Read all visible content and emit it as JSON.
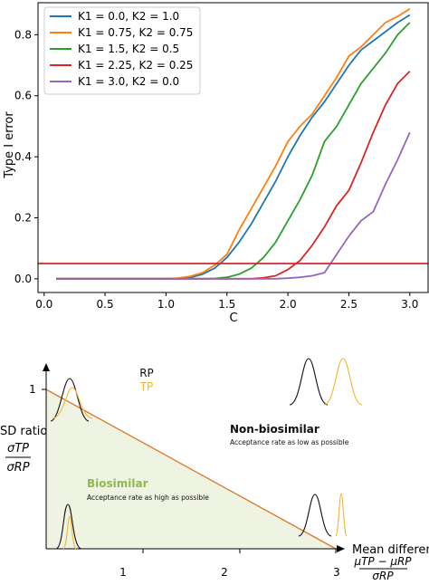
{
  "chart_data": [
    {
      "type": "line",
      "title": "",
      "xlabel": "C",
      "ylabel": "Type I error",
      "xlim": [
        -0.05,
        3.15
      ],
      "ylim": [
        -0.045,
        0.905
      ],
      "xticks": [
        0.0,
        0.5,
        1.0,
        1.5,
        2.0,
        2.5,
        3.0
      ],
      "xtick_labels": [
        "0.0",
        "0.5",
        "1.0",
        "1.5",
        "2.0",
        "2.5",
        "3.0"
      ],
      "yticks": [
        0.0,
        0.2,
        0.4,
        0.6,
        0.8
      ],
      "ytick_labels": [
        "0.0",
        "0.2",
        "0.4",
        "0.6",
        "0.8"
      ],
      "grid": false,
      "legend_position": "upper-left",
      "x": [
        0.1,
        0.2,
        0.3,
        0.4,
        0.5,
        0.6,
        0.7,
        0.8,
        0.9,
        1.0,
        1.1,
        1.2,
        1.3,
        1.4,
        1.5,
        1.6,
        1.7,
        1.8,
        1.9,
        2.0,
        2.1,
        2.2,
        2.3,
        2.4,
        2.5,
        2.6,
        2.7,
        2.8,
        2.9,
        3.0
      ],
      "series": [
        {
          "name": "K1 = 0.0, K2 = 1.0",
          "color": "#1f77b4",
          "values": [
            0,
            0,
            0,
            0,
            0,
            0,
            0,
            0,
            0,
            0,
            0.001,
            0.004,
            0.015,
            0.035,
            0.07,
            0.12,
            0.18,
            0.25,
            0.32,
            0.4,
            0.47,
            0.53,
            0.58,
            0.64,
            0.7,
            0.75,
            0.78,
            0.81,
            0.84,
            0.865
          ]
        },
        {
          "name": "K1 = 0.75, K2 = 0.75",
          "color": "#ff7f0e",
          "values": [
            0,
            0,
            0,
            0,
            0,
            0,
            0,
            0,
            0,
            0,
            0.002,
            0.008,
            0.02,
            0.045,
            0.08,
            0.16,
            0.23,
            0.3,
            0.37,
            0.45,
            0.5,
            0.54,
            0.6,
            0.66,
            0.73,
            0.76,
            0.8,
            0.84,
            0.86,
            0.885
          ]
        },
        {
          "name": "K1 = 1.5, K2 = 0.5",
          "color": "#2ca02c",
          "values": [
            0,
            0,
            0,
            0,
            0,
            0,
            0,
            0,
            0,
            0,
            0,
            0,
            0,
            0.001,
            0.005,
            0.015,
            0.035,
            0.07,
            0.12,
            0.19,
            0.26,
            0.34,
            0.45,
            0.5,
            0.57,
            0.64,
            0.69,
            0.74,
            0.8,
            0.84
          ]
        },
        {
          "name": "K1 = 2.25, K2 = 0.25",
          "color": "#d62728",
          "values": [
            0,
            0,
            0,
            0,
            0,
            0,
            0,
            0,
            0,
            0,
            0,
            0,
            0,
            0,
            0,
            0,
            0,
            0.003,
            0.01,
            0.03,
            0.06,
            0.11,
            0.17,
            0.24,
            0.29,
            0.38,
            0.48,
            0.57,
            0.64,
            0.68
          ]
        },
        {
          "name": "K1 = 3.0, K2 = 0.0",
          "color": "#9467bd",
          "values": [
            0,
            0,
            0,
            0,
            0,
            0,
            0,
            0,
            0,
            0,
            0,
            0,
            0,
            0,
            0,
            0,
            0,
            0,
            0,
            0.002,
            0.005,
            0.01,
            0.02,
            0.08,
            0.14,
            0.19,
            0.22,
            0.31,
            0.39,
            0.48
          ]
        }
      ],
      "reference_line": {
        "y": 0.05,
        "color": "#d62728"
      }
    },
    {
      "type": "diagram",
      "xlabel": "Mean difference",
      "xlabel_formula": {
        "numerator": "μTP − μRP",
        "denominator": "σRP"
      },
      "ylabel": "SD ratio",
      "ylabel_formula": {
        "numerator": "σTP",
        "denominator": "σRP"
      },
      "xticks": [
        1,
        2,
        3
      ],
      "xtick_labels": [
        "1",
        "2",
        "3"
      ],
      "ytick_labels": [
        "1"
      ],
      "boundary_line": {
        "from": [
          0,
          1
        ],
        "to": [
          3,
          0
        ],
        "color": "#d97a2b"
      },
      "region_fill": "#eef3e2",
      "legend": [
        {
          "label": "RP",
          "color": "#111111"
        },
        {
          "label": "TP",
          "color": "#f2b632"
        }
      ],
      "regions": [
        {
          "label": "Biosimilar",
          "description": "Acceptance rate as high as possible",
          "color": "#8db854"
        },
        {
          "label": "Non-biosimilar",
          "description": "Acceptance rate as low as possible",
          "color": "#111111"
        }
      ]
    }
  ]
}
